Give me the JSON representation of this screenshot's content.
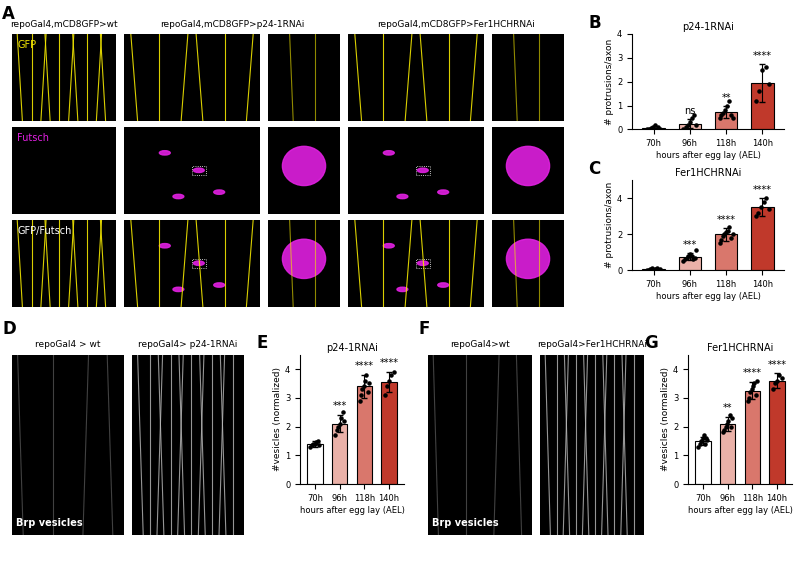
{
  "images": {
    "A": {
      "panel_label": "A",
      "columns": [
        "repoGal4,mCD8GFP>wt",
        "repoGal4,mCD8GFP>p24-1RNAi",
        "repoGal4,mCD8GFP>Fer1HCHRNAi"
      ],
      "channels": [
        "GFP",
        "Futsch",
        "GFP/Futsch"
      ]
    },
    "D": {
      "panel_label": "D",
      "columns": [
        "repoGal4 > wt",
        "repoGal4> p24-1RNAi"
      ],
      "stain": "Brp vesicles"
    },
    "F": {
      "panel_label": "F",
      "columns": [
        "repoGal4>wt",
        "repoGal4>Fer1HCHRNAi"
      ],
      "stain": "Brp vesicles"
    }
  },
  "chart_data": [
    {
      "type": "bar",
      "panel_label": "B",
      "title": "p24-1RNAi",
      "categories": [
        "70h",
        "96h",
        "118h",
        "140h"
      ],
      "values": [
        0.05,
        0.25,
        0.75,
        1.95
      ],
      "errors": [
        0.1,
        0.2,
        0.25,
        0.8
      ],
      "points": [
        [
          0,
          0,
          0.05,
          0.1,
          0.2,
          0,
          0.1,
          0
        ],
        [
          0,
          0.1,
          0.2,
          0.3,
          0.5,
          0.6,
          0.2
        ],
        [
          0.5,
          0.6,
          0.7,
          0.8,
          1.0,
          1.2,
          0.6,
          0.5
        ],
        [
          1.2,
          1.6,
          2.5,
          2.6,
          1.9
        ]
      ],
      "annotations": [
        null,
        "ns",
        "**",
        "****"
      ],
      "xlabel": "hours after egg lay (AEL)",
      "ylabel": "# protrusions/axon",
      "ylim": [
        0,
        4
      ],
      "yticks": [
        0,
        1,
        2,
        3,
        4
      ],
      "colors": [
        "#ffffff",
        "#eab1a8",
        "#d9776c",
        "#c0392b"
      ]
    },
    {
      "type": "bar",
      "panel_label": "C",
      "title": "Fer1HCHRNAi",
      "categories": [
        "70h",
        "96h",
        "118h",
        "140h"
      ],
      "values": [
        0.05,
        0.75,
        2.0,
        3.5
      ],
      "errors": [
        0.05,
        0.2,
        0.35,
        0.5
      ],
      "points": [
        [
          0,
          0,
          0.05,
          0.1,
          0,
          0.05,
          0.1,
          0,
          0.05
        ],
        [
          0.5,
          0.6,
          0.7,
          0.8,
          0.9,
          0.8,
          0.6,
          0.7,
          1.1
        ],
        [
          1.5,
          1.7,
          1.9,
          2.0,
          2.1,
          2.2,
          2.4,
          1.8,
          2.0
        ],
        [
          3.0,
          3.2,
          3.5,
          3.8,
          4.0,
          3.4
        ]
      ],
      "annotations": [
        null,
        "***",
        "****",
        "****"
      ],
      "xlabel": "hours after egg lay (AEL)",
      "ylabel": "# protrusions/axon",
      "ylim": [
        0,
        5
      ],
      "yticks": [
        0,
        2,
        4
      ],
      "colors": [
        "#ffffff",
        "#eab1a8",
        "#d9776c",
        "#c0392b"
      ]
    },
    {
      "type": "bar",
      "panel_label": "E",
      "title": "p24-1RNAi",
      "categories": [
        "70h",
        "96h",
        "118h",
        "140h"
      ],
      "values": [
        1.4,
        2.1,
        3.4,
        3.55
      ],
      "errors": [
        0.1,
        0.3,
        0.4,
        0.35
      ],
      "points": [
        [
          1.3,
          1.35,
          1.4,
          1.4,
          1.45,
          1.5,
          1.35
        ],
        [
          1.7,
          1.9,
          2.0,
          2.1,
          2.3,
          2.5,
          2.2
        ],
        [
          2.9,
          3.1,
          3.3,
          3.4,
          3.6,
          3.8,
          3.2,
          3.5
        ],
        [
          3.1,
          3.4,
          3.6,
          3.8,
          3.9
        ]
      ],
      "annotations": [
        null,
        "***",
        "****",
        "****"
      ],
      "xlabel": "hours after egg lay (AEL)",
      "ylabel": "#vesicles (normalized)",
      "ylim": [
        0,
        4.5
      ],
      "yticks": [
        0,
        1,
        2,
        3,
        4
      ],
      "colors": [
        "#ffffff",
        "#eab1a8",
        "#d9776c",
        "#c0392b"
      ]
    },
    {
      "type": "bar",
      "panel_label": "G",
      "title": "Fer1HCHRNAi",
      "categories": [
        "70h",
        "96h",
        "118h",
        "140h"
      ],
      "values": [
        1.5,
        2.1,
        3.25,
        3.6
      ],
      "errors": [
        0.15,
        0.25,
        0.3,
        0.25
      ],
      "points": [
        [
          1.3,
          1.4,
          1.5,
          1.5,
          1.6,
          1.7,
          1.4,
          1.6,
          1.55
        ],
        [
          1.8,
          1.9,
          2.0,
          2.1,
          2.2,
          2.4,
          2.0,
          2.3
        ],
        [
          2.9,
          3.0,
          3.2,
          3.3,
          3.4,
          3.5,
          3.1,
          3.6
        ],
        [
          3.3,
          3.5,
          3.6,
          3.8,
          3.7
        ]
      ],
      "annotations": [
        null,
        "**",
        "****",
        "****"
      ],
      "xlabel": "hours after egg lay (AEL)",
      "ylabel": "#vesicles (normalized)",
      "ylim": [
        0,
        4.5
      ],
      "yticks": [
        0,
        1,
        2,
        3,
        4
      ],
      "colors": [
        "#ffffff",
        "#eab1a8",
        "#d9776c",
        "#c0392b"
      ]
    }
  ]
}
